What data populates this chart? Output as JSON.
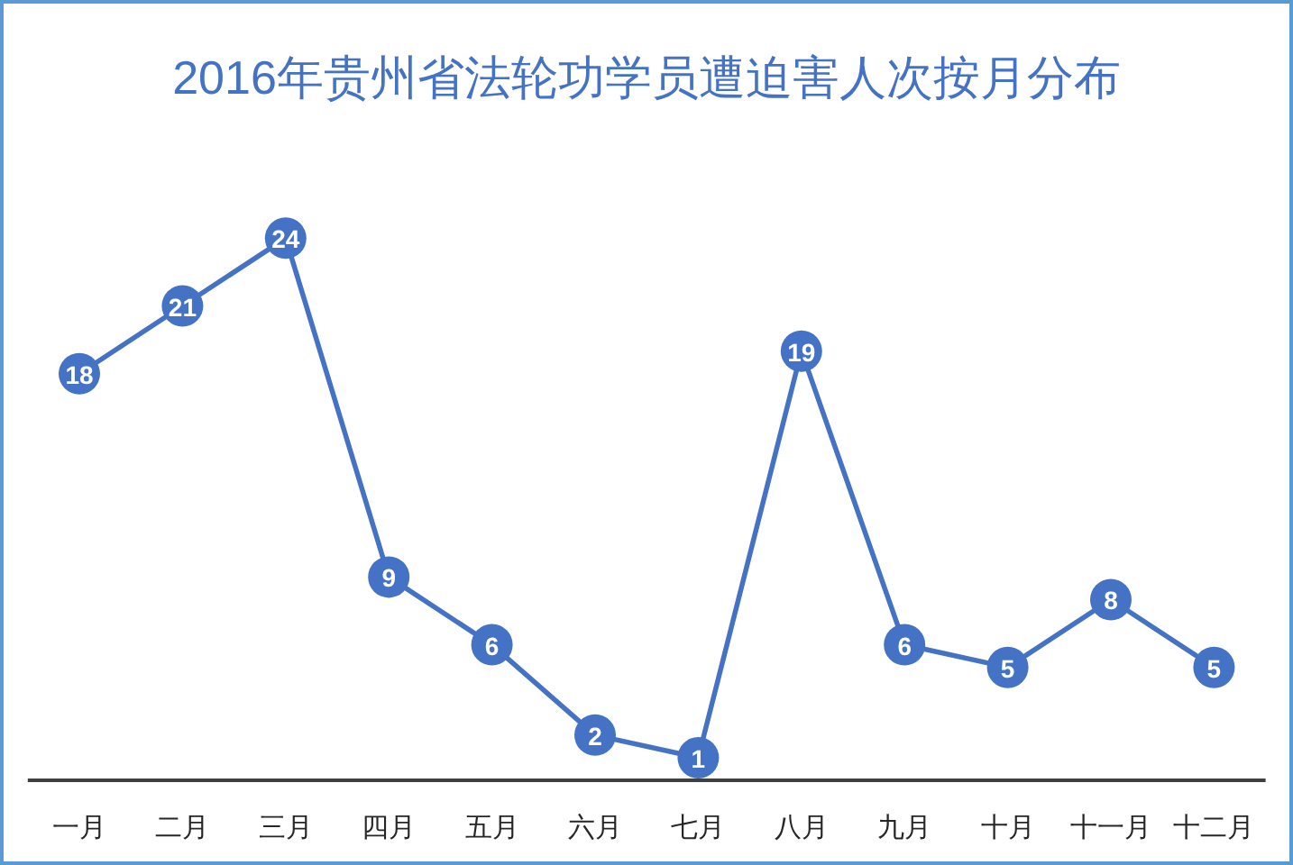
{
  "chart_data": {
    "type": "line",
    "title": "2016年贵州省法轮功学员遭迫害人次按月分布",
    "categories": [
      "一月",
      "二月",
      "三月",
      "四月",
      "五月",
      "六月",
      "七月",
      "八月",
      "九月",
      "十月",
      "十一月",
      "十二月"
    ],
    "values": [
      18,
      21,
      24,
      9,
      6,
      2,
      1,
      19,
      6,
      5,
      8,
      5
    ],
    "color": "#4472c4",
    "marker": "circle",
    "line_style": "solid",
    "data_labels": true
  }
}
